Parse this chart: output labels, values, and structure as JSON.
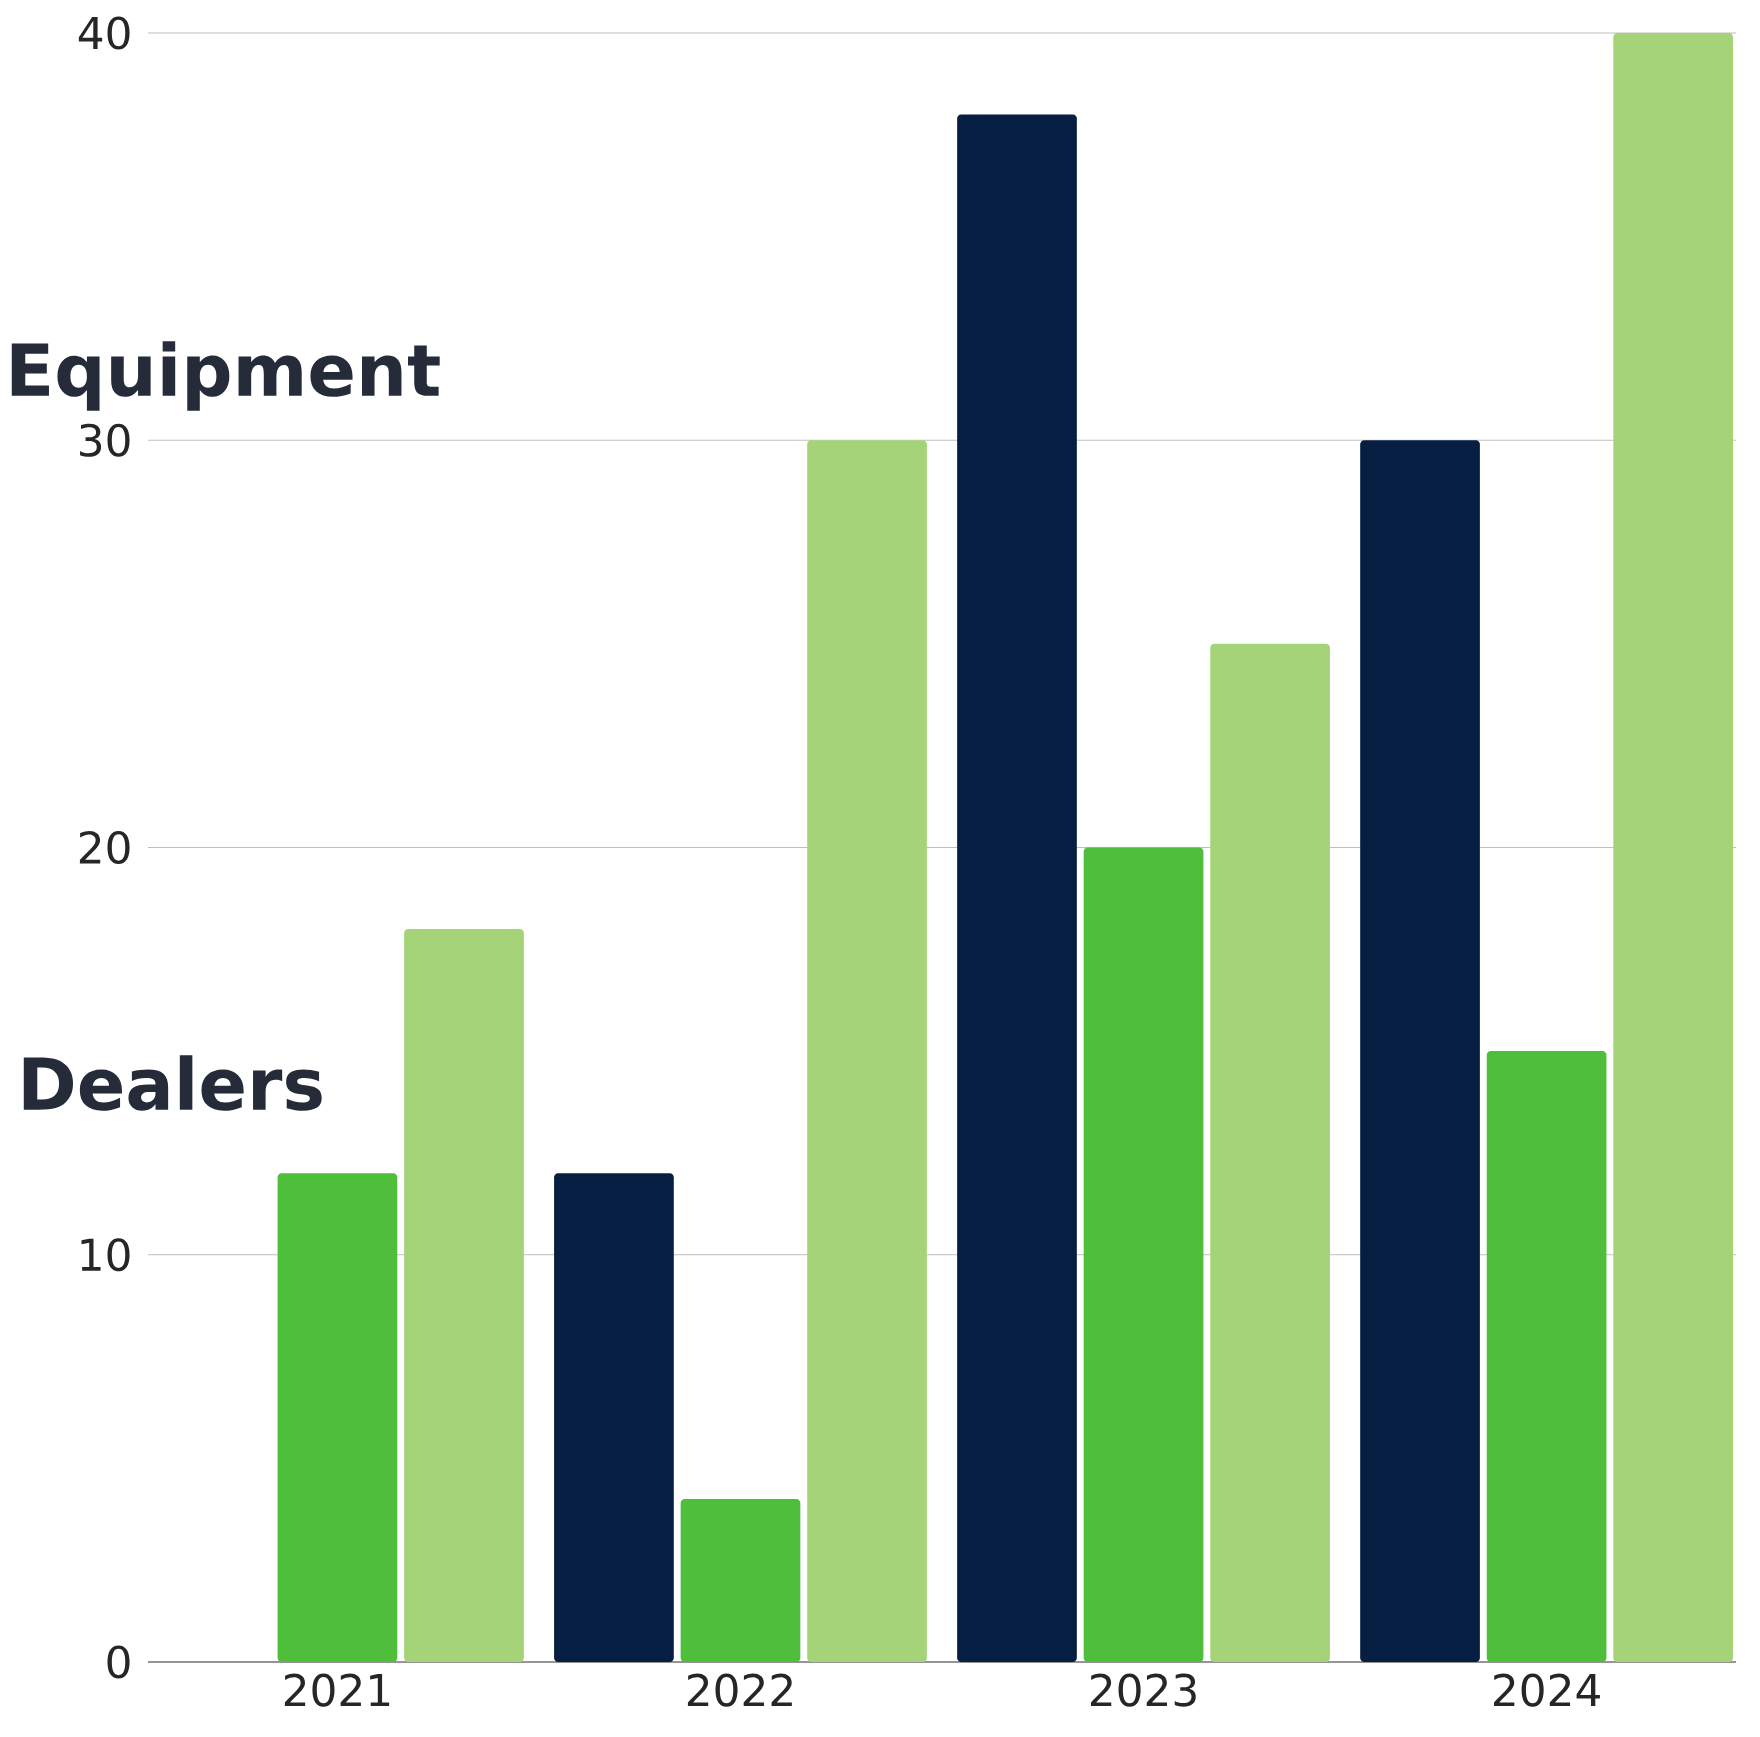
{
  "chart_data": {
    "type": "bar",
    "categories": [
      "2021",
      "2022",
      "2023",
      "2024"
    ],
    "series": [
      {
        "color": "#061e42",
        "values": [
          null,
          12,
          38,
          30
        ]
      },
      {
        "color": "#4fbe3a",
        "values": [
          12,
          4,
          20,
          15
        ]
      },
      {
        "color": "#a5d377",
        "values": [
          18,
          30,
          25,
          40
        ]
      }
    ],
    "ylim": [
      0,
      40
    ],
    "yticks": [
      0,
      10,
      20,
      30,
      40
    ],
    "grid": "y",
    "annotations": [
      "Equipment",
      "Dealers"
    ]
  }
}
